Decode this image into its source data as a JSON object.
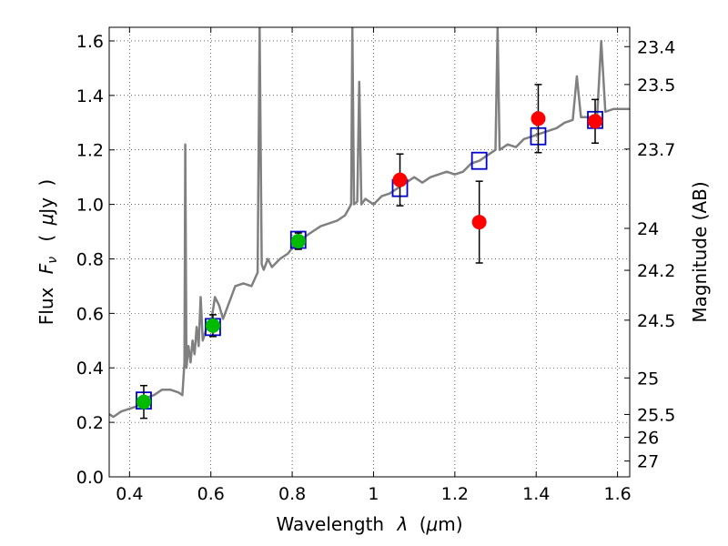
{
  "chart_data": {
    "type": "scatter",
    "title": "",
    "xlabel_parts": [
      "Wavelength",
      "λ",
      "(",
      "μ",
      "m)"
    ],
    "ylabel_parts": [
      "Flux",
      "F",
      "ν",
      "(",
      "μ",
      "Jy",
      ")"
    ],
    "y2label": "Magnitude (AB)",
    "xlim": [
      0.35,
      1.63
    ],
    "ylim": [
      0.0,
      1.65
    ],
    "grid": true,
    "x_ticks": [
      {
        "value": 0.4,
        "label": "0.4"
      },
      {
        "value": 0.6,
        "label": "0.6"
      },
      {
        "value": 0.8,
        "label": "0.8"
      },
      {
        "value": 1.0,
        "label": "1"
      },
      {
        "value": 1.2,
        "label": "1.2"
      },
      {
        "value": 1.4,
        "label": "1.4"
      },
      {
        "value": 1.6,
        "label": "1.6"
      }
    ],
    "y_ticks": [
      {
        "value": 0.0,
        "label": "0.0"
      },
      {
        "value": 0.2,
        "label": "0.2"
      },
      {
        "value": 0.4,
        "label": "0.4"
      },
      {
        "value": 0.6,
        "label": "0.6"
      },
      {
        "value": 0.8,
        "label": "0.8"
      },
      {
        "value": 1.0,
        "label": "1.0"
      },
      {
        "value": 1.2,
        "label": "1.2"
      },
      {
        "value": 1.4,
        "label": "1.4"
      },
      {
        "value": 1.6,
        "label": "1.6"
      }
    ],
    "mag_ticks": [
      {
        "flux": 1.579,
        "label": "23.4"
      },
      {
        "flux": 1.44,
        "label": "23.5"
      },
      {
        "flux": 1.203,
        "label": "23.7"
      },
      {
        "flux": 0.912,
        "label": "24"
      },
      {
        "flux": 0.758,
        "label": "24.2"
      },
      {
        "flux": 0.575,
        "label": "24.5"
      },
      {
        "flux": 0.363,
        "label": "25"
      },
      {
        "flux": 0.229,
        "label": "25.5"
      },
      {
        "flux": 0.145,
        "label": "26"
      },
      {
        "flux": 0.058,
        "label": "27"
      }
    ],
    "series": [
      {
        "name": "model-spectrum",
        "kind": "line",
        "color": "#808080",
        "points": [
          [
            0.35,
            0.23
          ],
          [
            0.36,
            0.22
          ],
          [
            0.37,
            0.23
          ],
          [
            0.38,
            0.24
          ],
          [
            0.4,
            0.25
          ],
          [
            0.42,
            0.26
          ],
          [
            0.44,
            0.29
          ],
          [
            0.46,
            0.3
          ],
          [
            0.48,
            0.32
          ],
          [
            0.5,
            0.32
          ],
          [
            0.52,
            0.31
          ],
          [
            0.53,
            0.3
          ],
          [
            0.535,
            0.42
          ],
          [
            0.537,
            1.22
          ],
          [
            0.54,
            0.4
          ],
          [
            0.545,
            0.48
          ],
          [
            0.55,
            0.42
          ],
          [
            0.555,
            0.5
          ],
          [
            0.56,
            0.45
          ],
          [
            0.565,
            0.55
          ],
          [
            0.57,
            0.48
          ],
          [
            0.575,
            0.66
          ],
          [
            0.58,
            0.5
          ],
          [
            0.59,
            0.55
          ],
          [
            0.6,
            0.56
          ],
          [
            0.61,
            0.66
          ],
          [
            0.62,
            0.63
          ],
          [
            0.63,
            0.58
          ],
          [
            0.64,
            0.62
          ],
          [
            0.66,
            0.7
          ],
          [
            0.68,
            0.71
          ],
          [
            0.7,
            0.7
          ],
          [
            0.715,
            0.75
          ],
          [
            0.72,
            1.65
          ],
          [
            0.725,
            0.78
          ],
          [
            0.73,
            0.76
          ],
          [
            0.74,
            0.8
          ],
          [
            0.75,
            0.77
          ],
          [
            0.77,
            0.8
          ],
          [
            0.79,
            0.82
          ],
          [
            0.81,
            0.86
          ],
          [
            0.83,
            0.88
          ],
          [
            0.85,
            0.9
          ],
          [
            0.87,
            0.92
          ],
          [
            0.89,
            0.93
          ],
          [
            0.91,
            0.94
          ],
          [
            0.93,
            0.96
          ],
          [
            0.945,
            1.0
          ],
          [
            0.948,
            1.65
          ],
          [
            0.952,
            1.0
          ],
          [
            0.96,
            1.01
          ],
          [
            0.965,
            1.45
          ],
          [
            0.97,
            1.0
          ],
          [
            0.98,
            1.02
          ],
          [
            1.0,
            1.0
          ],
          [
            1.02,
            1.03
          ],
          [
            1.04,
            1.04
          ],
          [
            1.06,
            1.06
          ],
          [
            1.08,
            1.08
          ],
          [
            1.1,
            1.1
          ],
          [
            1.12,
            1.08
          ],
          [
            1.14,
            1.1
          ],
          [
            1.16,
            1.11
          ],
          [
            1.18,
            1.12
          ],
          [
            1.2,
            1.11
          ],
          [
            1.22,
            1.12
          ],
          [
            1.24,
            1.15
          ],
          [
            1.26,
            1.16
          ],
          [
            1.28,
            1.18
          ],
          [
            1.3,
            1.2
          ],
          [
            1.305,
            1.65
          ],
          [
            1.31,
            1.2
          ],
          [
            1.33,
            1.22
          ],
          [
            1.35,
            1.21
          ],
          [
            1.37,
            1.24
          ],
          [
            1.39,
            1.25
          ],
          [
            1.41,
            1.26
          ],
          [
            1.43,
            1.27
          ],
          [
            1.45,
            1.28
          ],
          [
            1.47,
            1.3
          ],
          [
            1.49,
            1.31
          ],
          [
            1.5,
            1.47
          ],
          [
            1.51,
            1.32
          ],
          [
            1.53,
            1.32
          ],
          [
            1.55,
            1.33
          ],
          [
            1.56,
            1.6
          ],
          [
            1.57,
            1.34
          ],
          [
            1.59,
            1.35
          ],
          [
            1.61,
            1.35
          ],
          [
            1.63,
            1.35
          ]
        ]
      },
      {
        "name": "model-photometry",
        "kind": "open-square",
        "color": "#0000cc",
        "x": [
          0.435,
          0.605,
          0.815,
          1.065,
          1.26,
          1.405,
          1.545
        ],
        "y": [
          0.28,
          0.55,
          0.87,
          1.06,
          1.16,
          1.25,
          1.31
        ]
      },
      {
        "name": "optical-detections",
        "kind": "filled-circle",
        "color": "#00bb00",
        "x": [
          0.435,
          0.605,
          0.815
        ],
        "y": [
          0.275,
          0.555,
          0.865
        ],
        "err": [
          0.06,
          0.04,
          0.03
        ]
      },
      {
        "name": "nir-detections",
        "kind": "filled-circle",
        "color": "#ff0000",
        "x": [
          1.065,
          1.26,
          1.405,
          1.545
        ],
        "y": [
          1.09,
          0.935,
          1.315,
          1.305
        ],
        "err": [
          0.095,
          0.15,
          0.125,
          0.08
        ]
      }
    ]
  }
}
